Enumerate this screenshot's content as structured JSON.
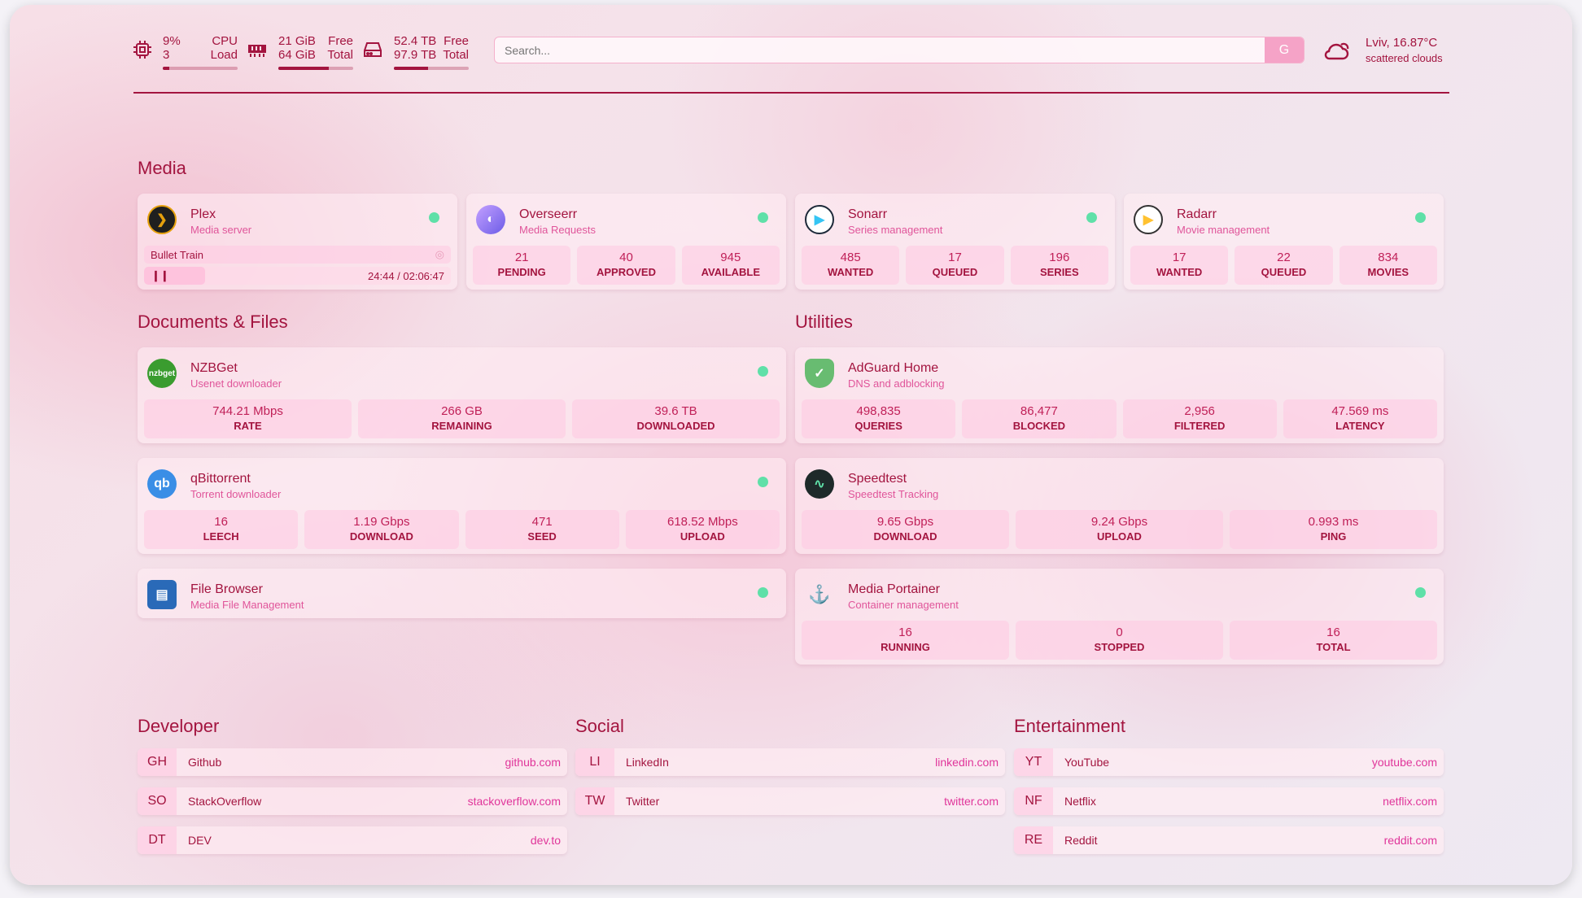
{
  "colors": {
    "accent": "#a3143f",
    "subtitle": "#e0559a",
    "status_ok": "#5fe0a8"
  },
  "resources": {
    "cpu": {
      "icon": "cpu-icon",
      "value": "9%",
      "value2": "3",
      "label": "CPU",
      "label2": "Load",
      "percent": 9
    },
    "memory": {
      "icon": "memory-icon",
      "value": "21 GiB",
      "value2": "64 GiB",
      "label": "Free",
      "label2": "Total",
      "percent": 67
    },
    "disk": {
      "icon": "disk-icon",
      "value": "52.4 TB",
      "value2": "97.9 TB",
      "label": "Free",
      "label2": "Total",
      "percent": 46
    }
  },
  "search": {
    "placeholder": "Search...",
    "provider_label": "G"
  },
  "weather": {
    "icon": "cloud-icon",
    "location_temp": "Lviv, 16.87°C",
    "description": "scattered clouds"
  },
  "sections": {
    "media": "Media",
    "documents": "Documents & Files",
    "utilities": "Utilities",
    "developer": "Developer",
    "social": "Social",
    "entertainment": "Entertainment"
  },
  "plex": {
    "title": "Plex",
    "subtitle": "Media server",
    "now_playing": "Bullet Train",
    "time": "24:44 / 02:06:47",
    "progress_percent": 20
  },
  "cards": [
    {
      "id": "overseerr",
      "title": "Overseerr",
      "subtitle": "Media Requests",
      "icon": "overseerr-icon",
      "stats": [
        {
          "v": "21",
          "l": "PENDING"
        },
        {
          "v": "40",
          "l": "APPROVED"
        },
        {
          "v": "945",
          "l": "AVAILABLE"
        }
      ]
    },
    {
      "id": "sonarr",
      "title": "Sonarr",
      "subtitle": "Series management",
      "icon": "sonarr-icon",
      "stats": [
        {
          "v": "485",
          "l": "WANTED"
        },
        {
          "v": "17",
          "l": "QUEUED"
        },
        {
          "v": "196",
          "l": "SERIES"
        }
      ]
    },
    {
      "id": "radarr",
      "title": "Radarr",
      "subtitle": "Movie management",
      "icon": "radarr-icon",
      "stats": [
        {
          "v": "17",
          "l": "WANTED"
        },
        {
          "v": "22",
          "l": "QUEUED"
        },
        {
          "v": "834",
          "l": "MOVIES"
        }
      ]
    },
    {
      "id": "nzbget",
      "title": "NZBGet",
      "subtitle": "Usenet downloader",
      "icon": "nzbget-icon",
      "stats": [
        {
          "v": "744.21 Mbps",
          "l": "RATE"
        },
        {
          "v": "266 GB",
          "l": "REMAINING"
        },
        {
          "v": "39.6 TB",
          "l": "DOWNLOADED"
        }
      ]
    },
    {
      "id": "qbittorrent",
      "title": "qBittorrent",
      "subtitle": "Torrent downloader",
      "icon": "qbittorrent-icon",
      "stats": [
        {
          "v": "16",
          "l": "LEECH"
        },
        {
          "v": "1.19 Gbps",
          "l": "DOWNLOAD"
        },
        {
          "v": "471",
          "l": "SEED"
        },
        {
          "v": "618.52 Mbps",
          "l": "UPLOAD"
        }
      ]
    },
    {
      "id": "filebrowser",
      "title": "File Browser",
      "subtitle": "Media File Management",
      "icon": "file-browser-icon",
      "stats": []
    },
    {
      "id": "adguard",
      "title": "AdGuard Home",
      "subtitle": "DNS and adblocking",
      "icon": "adguard-shield-icon",
      "stats": [
        {
          "v": "498,835",
          "l": "QUERIES"
        },
        {
          "v": "86,477",
          "l": "BLOCKED"
        },
        {
          "v": "2,956",
          "l": "FILTERED"
        },
        {
          "v": "47.569 ms",
          "l": "LATENCY"
        }
      ]
    },
    {
      "id": "speedtest",
      "title": "Speedtest",
      "subtitle": "Speedtest Tracking",
      "icon": "speedtest-icon",
      "stats": [
        {
          "v": "9.65 Gbps",
          "l": "DOWNLOAD"
        },
        {
          "v": "9.24 Gbps",
          "l": "UPLOAD"
        },
        {
          "v": "0.993 ms",
          "l": "PING"
        }
      ]
    },
    {
      "id": "portainer",
      "title": "Media Portainer",
      "subtitle": "Container management",
      "icon": "portainer-icon",
      "stats": [
        {
          "v": "16",
          "l": "RUNNING"
        },
        {
          "v": "0",
          "l": "STOPPED"
        },
        {
          "v": "16",
          "l": "TOTAL"
        }
      ]
    }
  ],
  "bookmarks": [
    [
      {
        "abbr": "GH",
        "name": "Github",
        "url": "github.com"
      },
      {
        "abbr": "SO",
        "name": "StackOverflow",
        "url": "stackoverflow.com"
      },
      {
        "abbr": "DT",
        "name": "DEV",
        "url": "dev.to"
      }
    ],
    [
      {
        "abbr": "LI",
        "name": "LinkedIn",
        "url": "linkedin.com"
      },
      {
        "abbr": "TW",
        "name": "Twitter",
        "url": "twitter.com"
      }
    ],
    [
      {
        "abbr": "YT",
        "name": "YouTube",
        "url": "youtube.com"
      },
      {
        "abbr": "NF",
        "name": "Netflix",
        "url": "netflix.com"
      },
      {
        "abbr": "RE",
        "name": "Reddit",
        "url": "reddit.com"
      }
    ]
  ]
}
